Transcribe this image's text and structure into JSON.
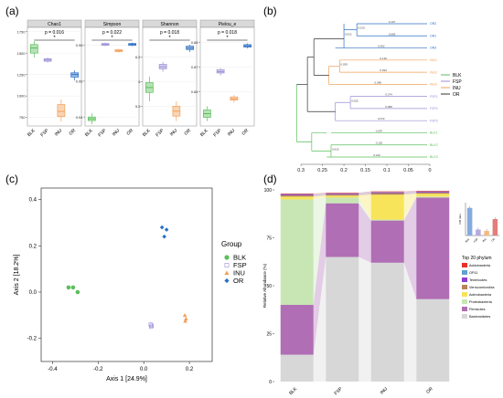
{
  "panels": {
    "a": "(a)",
    "b": "(b)",
    "c": "(c)",
    "d": "(d)"
  },
  "colors": {
    "BLK": "#5cbf5c",
    "FSP": "#9b8fd6",
    "INU": "#f2a05a",
    "OR": "#2c6fc4"
  },
  "groups": [
    "BLK",
    "FSP",
    "INU",
    "OR"
  ],
  "chart_data": [
    {
      "type": "boxplot",
      "panel": "a",
      "categories": [
        "BLK",
        "FSP",
        "INU",
        "OR"
      ],
      "facets": [
        {
          "title": "Chao1",
          "pvalue": "p = 0.016",
          "sig": "*",
          "yticks": [
            750,
            1000,
            1250,
            1500,
            1750
          ],
          "ylim": [
            650,
            1800
          ],
          "boxes": [
            {
              "min": 1450,
              "q1": 1500,
              "median": 1560,
              "q3": 1600,
              "max": 1640
            },
            {
              "min": 1390,
              "q1": 1405,
              "median": 1420,
              "q3": 1435,
              "max": 1450
            },
            {
              "min": 700,
              "q1": 760,
              "median": 820,
              "q3": 900,
              "max": 960
            },
            {
              "min": 1180,
              "q1": 1220,
              "median": 1250,
              "q3": 1270,
              "max": 1300
            }
          ]
        },
        {
          "title": "Simpson",
          "pvalue": "p = 0.022",
          "sig": "*",
          "yticks": [
            0.94,
            0.96,
            0.98
          ],
          "ylim": [
            0.935,
            0.99
          ],
          "boxes": [
            {
              "min": 0.936,
              "q1": 0.938,
              "median": 0.939,
              "q3": 0.94,
              "max": 0.942
            },
            {
              "min": 0.9795,
              "q1": 0.98,
              "median": 0.9805,
              "q3": 0.981,
              "max": 0.9815
            },
            {
              "min": 0.976,
              "q1": 0.9765,
              "median": 0.977,
              "q3": 0.9775,
              "max": 0.978
            },
            {
              "min": 0.9795,
              "q1": 0.98,
              "median": 0.9805,
              "q3": 0.981,
              "max": 0.9815
            }
          ]
        },
        {
          "title": "Shannon",
          "pvalue": "p = 0.018",
          "sig": "*",
          "yticks": [
            5.5,
            6.0,
            6.5
          ],
          "ylim": [
            5.1,
            7.1
          ],
          "boxes": [
            {
              "min": 5.6,
              "q1": 5.78,
              "median": 5.88,
              "q3": 5.98,
              "max": 6.1
            },
            {
              "min": 6.2,
              "q1": 6.26,
              "median": 6.3,
              "q3": 6.35,
              "max": 6.4
            },
            {
              "min": 5.2,
              "q1": 5.3,
              "median": 5.4,
              "q3": 5.5,
              "max": 5.6
            },
            {
              "min": 6.6,
              "q1": 6.65,
              "median": 6.68,
              "q3": 6.72,
              "max": 6.75
            }
          ]
        },
        {
          "title": "Pielou_e",
          "pvalue": "p = 0.018",
          "sig": "*",
          "yticks": [
            0.86,
            0.87,
            0.88
          ],
          "ylim": [
            0.846,
            0.886
          ],
          "boxes": [
            {
              "min": 0.848,
              "q1": 0.8495,
              "median": 0.851,
              "q3": 0.8525,
              "max": 0.854
            },
            {
              "min": 0.8665,
              "q1": 0.8675,
              "median": 0.868,
              "q3": 0.8688,
              "max": 0.8695
            },
            {
              "min": 0.8555,
              "q1": 0.8565,
              "median": 0.857,
              "q3": 0.8578,
              "max": 0.8585
            },
            {
              "min": 0.8775,
              "q1": 0.878,
              "median": 0.8785,
              "q3": 0.879,
              "max": 0.8795
            }
          ]
        }
      ]
    },
    {
      "type": "dendrogram",
      "panel": "b",
      "axis_ticks": [
        "0.3",
        "0.25",
        "0.2",
        "0.15",
        "0.1",
        "0.05",
        "0"
      ],
      "xlim": [
        0.33,
        0
      ],
      "legend": [
        "BLK",
        "FSP",
        "INU",
        "OR"
      ],
      "leaves": [
        {
          "label": "OR2",
          "group": "OR",
          "branch": "0.107"
        },
        {
          "label": "OR1",
          "group": "OR",
          "branch": "0.069"
        },
        {
          "label": "OR3",
          "group": "OR",
          "branch": "0.092"
        },
        {
          "label": "INU1",
          "group": "INU",
          "branch": "0.130"
        },
        {
          "label": "INU2",
          "group": "INU",
          "branch": "0.094"
        },
        {
          "label": "INU3",
          "group": "INU",
          "branch": "0.086"
        },
        {
          "label": "FSP1",
          "group": "FSP",
          "branch": "0.074"
        },
        {
          "label": "FSP2",
          "group": "FSP",
          "branch": "0.088"
        },
        {
          "label": "FSP3",
          "group": "FSP",
          "branch": "0.072"
        },
        {
          "label": "BLK1",
          "group": "BLK",
          "branch": "0.097"
        },
        {
          "label": "BLK2",
          "group": "BLK",
          "branch": "0.120"
        },
        {
          "label": "BLK3",
          "group": "BLK",
          "branch": "0.132"
        }
      ]
    },
    {
      "type": "scatter",
      "panel": "c",
      "xlabel": "Axis 1 [24.9%]",
      "ylabel": "Axis 2 [18.2%]",
      "xlim": [
        -0.45,
        0.3
      ],
      "ylim": [
        -0.3,
        0.45
      ],
      "xticks": [
        -0.4,
        -0.2,
        0.0,
        0.2
      ],
      "yticks": [
        -0.2,
        0.0,
        0.2,
        0.4
      ],
      "legend_title": "Group",
      "legend": [
        "BLK",
        "FSP",
        "INU",
        "OR"
      ],
      "series": [
        {
          "name": "BLK",
          "shape": "circle",
          "points": [
            [
              -0.33,
              0.02
            ],
            [
              -0.31,
              0.02
            ],
            [
              -0.29,
              0.0
            ]
          ]
        },
        {
          "name": "FSP",
          "shape": "square",
          "points": [
            [
              0.03,
              -0.14
            ],
            [
              0.035,
              -0.145
            ],
            [
              0.032,
              -0.15
            ]
          ]
        },
        {
          "name": "INU",
          "shape": "triangle",
          "points": [
            [
              0.18,
              -0.1
            ],
            [
              0.185,
              -0.115
            ],
            [
              0.182,
              -0.125
            ]
          ]
        },
        {
          "name": "OR",
          "shape": "diamond",
          "points": [
            [
              0.08,
              0.28
            ],
            [
              0.1,
              0.27
            ],
            [
              0.09,
              0.24
            ]
          ]
        }
      ]
    },
    {
      "type": "stacked_bar",
      "panel": "d",
      "ylabel": "Relative Abundance (%)",
      "categories": [
        "BLK",
        "FSP",
        "INU",
        "OR"
      ],
      "yticks": [
        0,
        25,
        50,
        75,
        100
      ],
      "ylim": [
        0,
        100
      ],
      "legend_title": "Top 20 phylum",
      "series": [
        {
          "name": "Bacteroidetes",
          "color": "#d7d7d7",
          "values": [
            14,
            65,
            62,
            43
          ]
        },
        {
          "name": "Firmicutes",
          "color": "#b06eb4",
          "values": [
            26,
            28,
            22,
            53
          ]
        },
        {
          "name": "Proteobacteria",
          "color": "#c8e6b4",
          "values": [
            55,
            3,
            0.5,
            0.5
          ]
        },
        {
          "name": "Actinobacteria",
          "color": "#f7e45a",
          "values": [
            1.5,
            1,
            13,
            1.5
          ]
        },
        {
          "name": "Verrucomicrobia",
          "color": "#b8835a",
          "values": [
            0.7,
            0.6,
            0.8,
            0.6
          ]
        },
        {
          "name": "Tenericutes",
          "color": "#8a3fd0",
          "values": [
            0.4,
            0.4,
            0.4,
            0.4
          ]
        },
        {
          "name": "OP11",
          "color": "#5ea2cf",
          "values": [
            0.2,
            0.2,
            0.2,
            0.2
          ]
        },
        {
          "name": "Acidobacteria",
          "color": "#e8312a",
          "values": [
            0.3,
            0.3,
            0.3,
            0.3
          ]
        }
      ]
    },
    {
      "type": "bar",
      "panel": "d-inset",
      "categories": [
        "BLK",
        "FSP",
        "INU",
        "OR"
      ],
      "ylabel": "F/B ratio",
      "values": [
        2.1,
        0.45,
        0.35,
        1.25
      ],
      "ylim": [
        0,
        2.5
      ]
    }
  ]
}
